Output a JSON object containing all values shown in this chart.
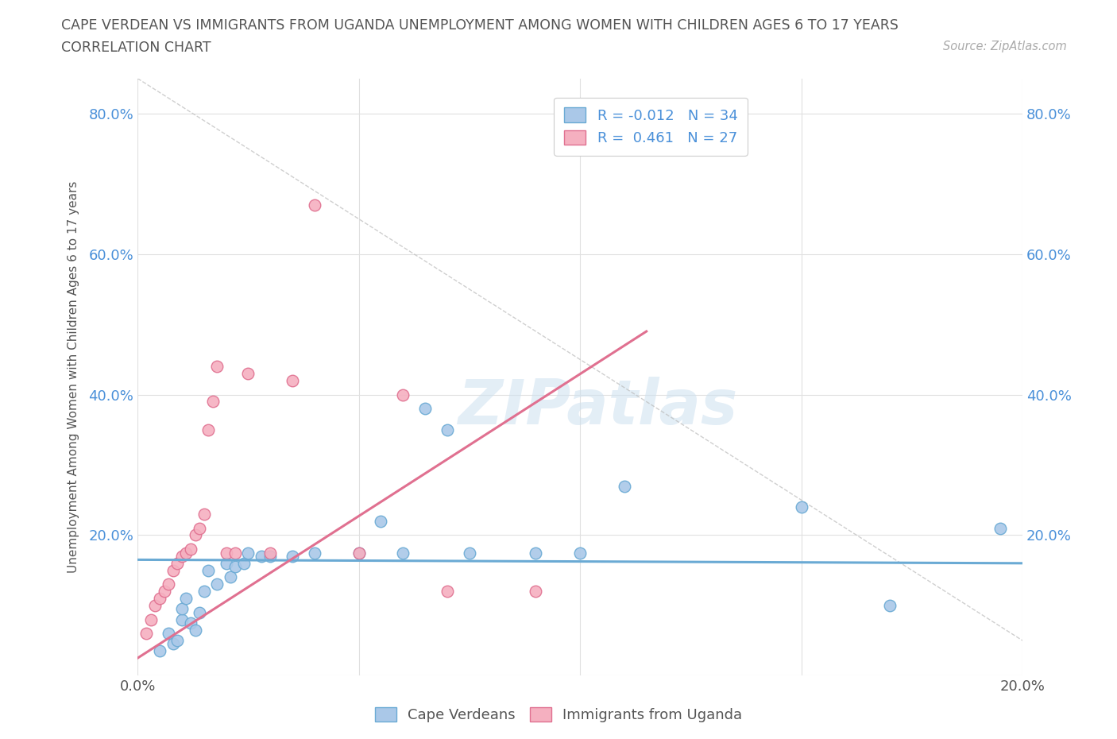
{
  "title_line1": "CAPE VERDEAN VS IMMIGRANTS FROM UGANDA UNEMPLOYMENT AMONG WOMEN WITH CHILDREN AGES 6 TO 17 YEARS",
  "title_line2": "CORRELATION CHART",
  "source": "Source: ZipAtlas.com",
  "ylabel": "Unemployment Among Women with Children Ages 6 to 17 years",
  "watermark": "ZIPatlas",
  "xlim": [
    0.0,
    0.2
  ],
  "ylim": [
    0.0,
    0.85
  ],
  "x_ticks": [
    0.0,
    0.05,
    0.1,
    0.15,
    0.2
  ],
  "x_tick_labels": [
    "0.0%",
    "",
    "",
    "",
    "20.0%"
  ],
  "y_ticks": [
    0.0,
    0.2,
    0.4,
    0.6,
    0.8
  ],
  "y_tick_labels": [
    "",
    "20.0%",
    "40.0%",
    "60.0%",
    "80.0%"
  ],
  "blue_scatter_x": [
    0.005,
    0.007,
    0.008,
    0.009,
    0.01,
    0.01,
    0.011,
    0.012,
    0.013,
    0.014,
    0.015,
    0.016,
    0.018,
    0.02,
    0.021,
    0.022,
    0.024,
    0.025,
    0.028,
    0.03,
    0.035,
    0.04,
    0.05,
    0.055,
    0.06,
    0.065,
    0.07,
    0.075,
    0.09,
    0.1,
    0.11,
    0.15,
    0.17,
    0.195
  ],
  "blue_scatter_y": [
    0.035,
    0.06,
    0.045,
    0.05,
    0.08,
    0.095,
    0.11,
    0.075,
    0.065,
    0.09,
    0.12,
    0.15,
    0.13,
    0.16,
    0.14,
    0.155,
    0.16,
    0.175,
    0.17,
    0.17,
    0.17,
    0.175,
    0.175,
    0.22,
    0.175,
    0.38,
    0.35,
    0.175,
    0.175,
    0.175,
    0.27,
    0.24,
    0.1,
    0.21
  ],
  "pink_scatter_x": [
    0.002,
    0.003,
    0.004,
    0.005,
    0.006,
    0.007,
    0.008,
    0.009,
    0.01,
    0.011,
    0.012,
    0.013,
    0.014,
    0.015,
    0.016,
    0.017,
    0.018,
    0.02,
    0.022,
    0.025,
    0.03,
    0.035,
    0.04,
    0.05,
    0.06,
    0.07,
    0.09
  ],
  "pink_scatter_y": [
    0.06,
    0.08,
    0.1,
    0.11,
    0.12,
    0.13,
    0.15,
    0.16,
    0.17,
    0.175,
    0.18,
    0.2,
    0.21,
    0.23,
    0.35,
    0.39,
    0.44,
    0.175,
    0.175,
    0.43,
    0.175,
    0.42,
    0.67,
    0.175,
    0.4,
    0.12,
    0.12
  ],
  "blue_color": "#aac8e8",
  "pink_color": "#f5b0c0",
  "blue_edge_color": "#6aaad4",
  "pink_edge_color": "#e07090",
  "blue_trend_x": [
    0.0,
    0.2
  ],
  "blue_trend_y": [
    0.165,
    0.16
  ],
  "pink_trend_x": [
    0.0,
    0.115
  ],
  "pink_trend_y": [
    0.025,
    0.49
  ],
  "diag_line_x": [
    0.0,
    0.2
  ],
  "diag_line_y": [
    0.85,
    0.05
  ],
  "background_color": "#ffffff",
  "grid_color": "#e0e0e0",
  "tick_color": "#4a90d9",
  "title_color": "#555555",
  "source_color": "#aaaaaa"
}
